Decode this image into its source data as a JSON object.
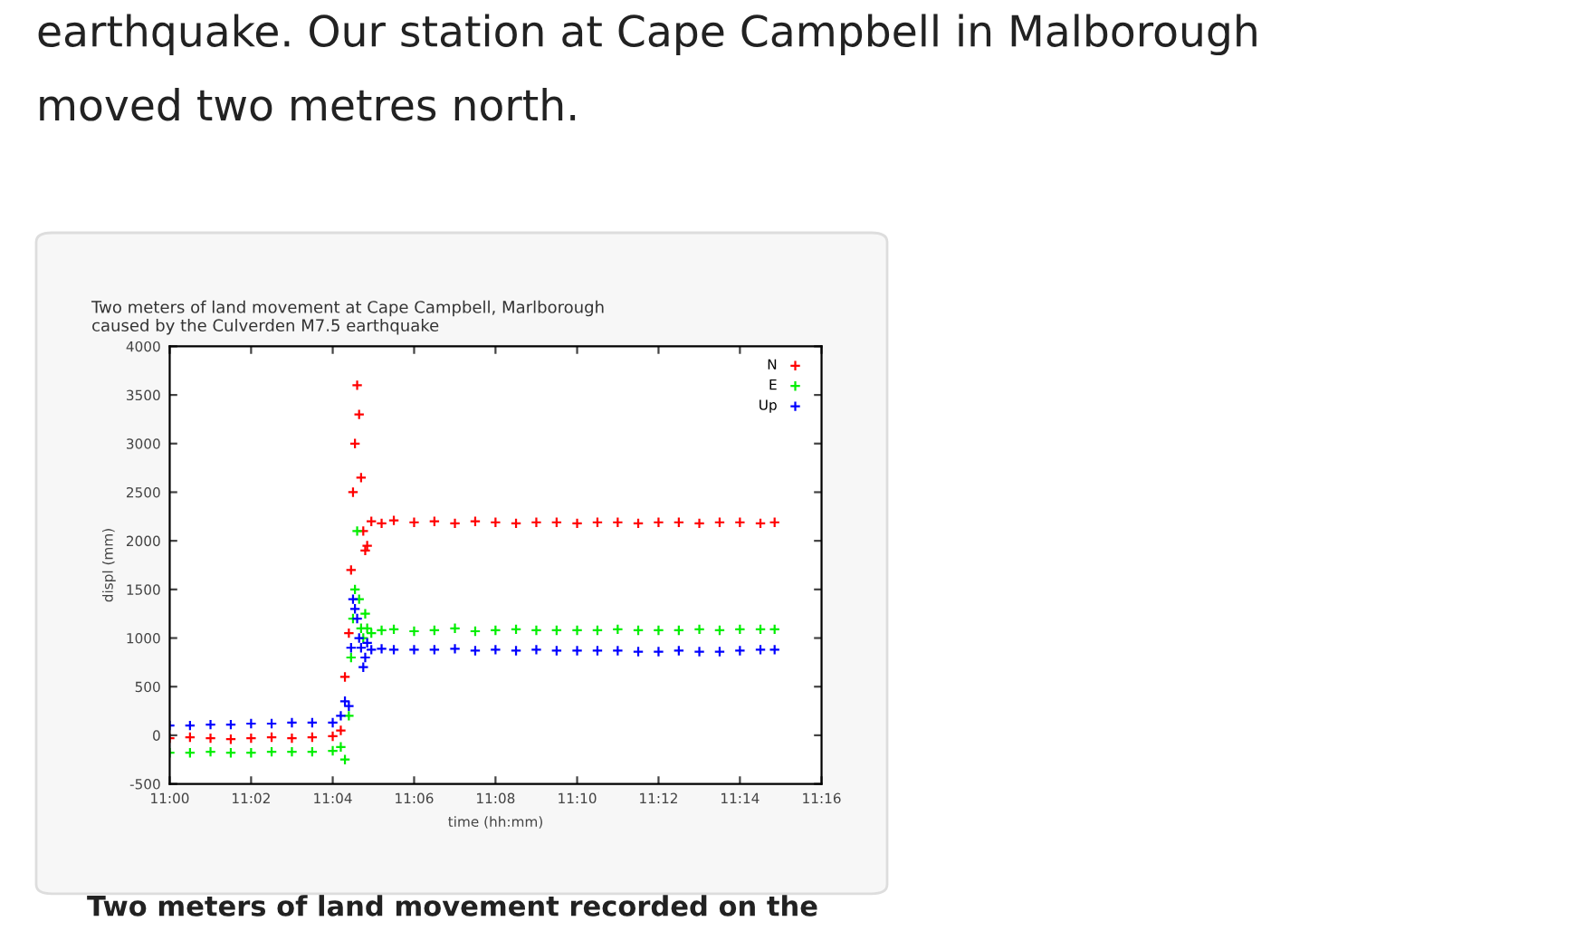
{
  "chart_data": {
    "type": "scatter",
    "title": "Two meters of land movement at Cape Campbell, Marlborough\ncaused by the Culverden M7.5 earthquake",
    "xlabel": "time (hh:mm)",
    "ylabel": "displ (mm)",
    "annotations": [
      "earthquake. Our station at Cape Campbell in Malborough\nmoved two metres north.",
      "Two meters of land movement recorded on the"
    ],
    "x": [
      11.0,
      11.0083,
      11.0167,
      11.025,
      11.0333,
      11.0417,
      11.05,
      11.0583,
      11.0667,
      11.07,
      11.0717,
      11.0733,
      11.0742,
      11.075,
      11.0758,
      11.0767,
      11.0775,
      11.0783,
      11.0792,
      11.08,
      11.0808,
      11.0825,
      11.0867,
      11.0917,
      11.1,
      11.1083,
      11.1167,
      11.125,
      11.1333,
      11.1417,
      11.15,
      11.1583,
      11.1667,
      11.175,
      11.1833,
      11.1917,
      11.2,
      11.2083,
      11.2167,
      11.225,
      11.2333,
      11.2417,
      11.2475
    ],
    "series": [
      {
        "name": "N",
        "color": "#ff0000",
        "values": [
          -30,
          -20,
          -30,
          -40,
          -30,
          -20,
          -30,
          -20,
          -10,
          50,
          600,
          1050,
          1700,
          2500,
          3000,
          3600,
          3300,
          2650,
          2100,
          1900,
          1950,
          2200,
          2180,
          2210,
          2190,
          2200,
          2180,
          2200,
          2190,
          2180,
          2190,
          2190,
          2180,
          2190,
          2190,
          2180,
          2190,
          2190,
          2180,
          2190,
          2190,
          2180,
          2190
        ]
      },
      {
        "name": "E",
        "color": "#00ee00",
        "values": [
          -180,
          -180,
          -170,
          -180,
          -180,
          -170,
          -170,
          -170,
          -160,
          -120,
          -250,
          200,
          800,
          1200,
          1500,
          2100,
          1400,
          1100,
          1000,
          1250,
          1100,
          1050,
          1080,
          1090,
          1070,
          1080,
          1100,
          1070,
          1080,
          1090,
          1080,
          1080,
          1080,
          1080,
          1090,
          1080,
          1080,
          1080,
          1090,
          1080,
          1090,
          1090,
          1090
        ]
      },
      {
        "name": "Up",
        "color": "#0000ff",
        "values": [
          100,
          100,
          110,
          110,
          120,
          120,
          130,
          130,
          130,
          200,
          350,
          300,
          900,
          1400,
          1300,
          1200,
          1000,
          900,
          700,
          800,
          950,
          880,
          890,
          880,
          880,
          880,
          890,
          870,
          880,
          870,
          880,
          870,
          870,
          870,
          870,
          860,
          860,
          870,
          860,
          860,
          870,
          880,
          880
        ]
      }
    ],
    "xlim": [
      11.0,
      11.2667
    ],
    "xticks": [
      {
        "value": 11.0,
        "label": "11:00"
      },
      {
        "value": 11.0333,
        "label": "11:02"
      },
      {
        "value": 11.0667,
        "label": "11:04"
      },
      {
        "value": 11.1,
        "label": "11:06"
      },
      {
        "value": 11.1333,
        "label": "11:08"
      },
      {
        "value": 11.1667,
        "label": "11:10"
      },
      {
        "value": 11.2,
        "label": "11:12"
      },
      {
        "value": 11.2333,
        "label": "11:14"
      },
      {
        "value": 11.2667,
        "label": "11:16"
      }
    ],
    "ylim": [
      -500,
      4000
    ],
    "yticks": [
      -500,
      0,
      500,
      1000,
      1500,
      2000,
      2500,
      3000,
      3500,
      4000
    ],
    "legend": "top right",
    "marker": "cross",
    "grid": false
  }
}
